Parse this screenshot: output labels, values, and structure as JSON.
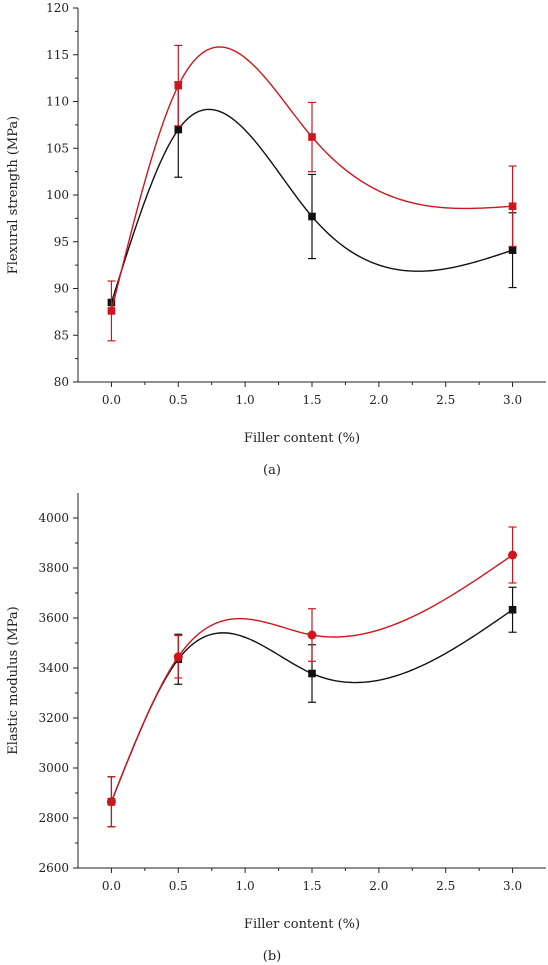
{
  "chart_data": [
    {
      "type": "line",
      "caption": "(a)",
      "xlabel": "Filler content (%)",
      "ylabel": "Flexural strength (MPa)",
      "xlim": [
        -0.25,
        3.25
      ],
      "ylim": [
        80,
        120
      ],
      "xticks": [
        0.0,
        0.5,
        1.0,
        1.5,
        2.0,
        2.5,
        3.0
      ],
      "xtick_labels": [
        "0.0",
        "0.5",
        "1.0",
        "1.5",
        "2.0",
        "2.5",
        "3.0"
      ],
      "yticks": [
        80,
        85,
        90,
        95,
        100,
        105,
        110,
        115,
        120
      ],
      "marker": "square",
      "series": [
        {
          "color": "#111111",
          "x": [
            0.0,
            0.5,
            1.5,
            3.0
          ],
          "y": [
            88.5,
            107.0,
            97.7,
            94.1
          ],
          "err": [
            0.0,
            5.1,
            4.5,
            4.0
          ]
        },
        {
          "color": "#d0161d",
          "x": [
            0.0,
            0.5,
            1.5,
            3.0
          ],
          "y": [
            87.6,
            111.7,
            106.2,
            98.8
          ],
          "err": [
            3.2,
            4.3,
            3.7,
            4.3
          ]
        }
      ],
      "grid": false
    },
    {
      "type": "line",
      "caption": "(b)",
      "xlabel": "Filler content (%)",
      "ylabel": "Elastic modulus (MPa)",
      "xlim": [
        -0.25,
        3.25
      ],
      "ylim": [
        2600,
        4100
      ],
      "xticks": [
        0.0,
        0.5,
        1.0,
        1.5,
        2.0,
        2.5,
        3.0
      ],
      "xtick_labels": [
        "0.0",
        "0.5",
        "1.0",
        "1.5",
        "2.0",
        "2.5",
        "3.0"
      ],
      "yticks": [
        2600,
        2800,
        3000,
        3200,
        3400,
        3600,
        3800,
        4000
      ],
      "series": [
        {
          "color": "#111111",
          "marker": "square",
          "x": [
            0.0,
            0.5,
            1.5,
            3.0
          ],
          "y": [
            2865,
            3435,
            3378,
            3633
          ],
          "err": [
            100,
            100,
            115,
            90
          ]
        },
        {
          "color": "#d0161d",
          "marker": "circle",
          "x": [
            0.0,
            0.5,
            1.5,
            3.0
          ],
          "y": [
            2865,
            3445,
            3532,
            3852
          ],
          "err": [
            100,
            85,
            105,
            112
          ]
        }
      ],
      "grid": false
    }
  ]
}
